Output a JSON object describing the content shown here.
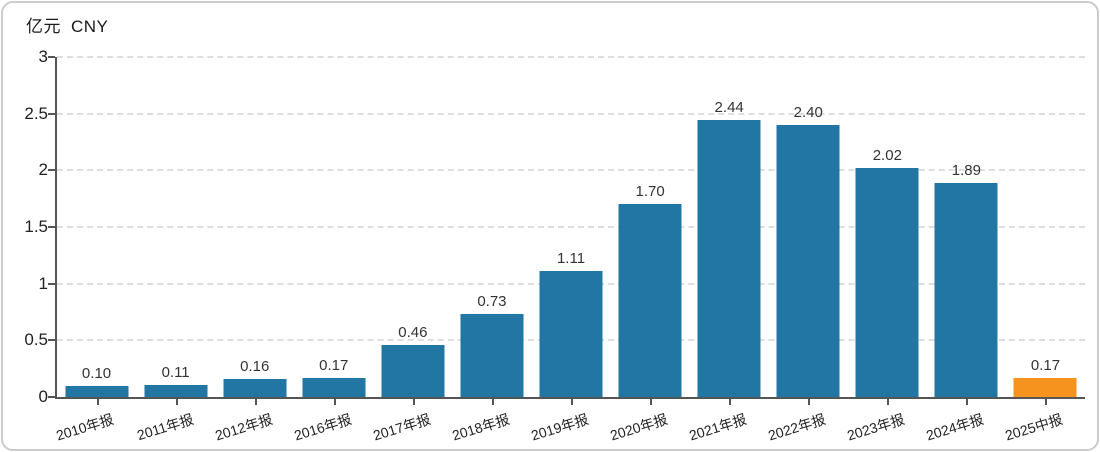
{
  "title": {
    "unit": "亿元",
    "currency": "CNY"
  },
  "chart_data": {
    "type": "bar",
    "title": "亿元 CNY",
    "xlabel": "",
    "ylabel": "亿元 CNY",
    "categories": [
      "2010年报",
      "2011年报",
      "2012年报",
      "2016年报",
      "2017年报",
      "2018年报",
      "2019年报",
      "2020年报",
      "2021年报",
      "2022年报",
      "2023年报",
      "2024年报",
      "2025中报"
    ],
    "values": [
      0.1,
      0.11,
      0.16,
      0.17,
      0.46,
      0.73,
      1.11,
      1.7,
      2.44,
      2.4,
      2.02,
      1.89,
      0.17
    ],
    "value_labels": [
      "0.10",
      "0.11",
      "0.16",
      "0.17",
      "0.46",
      "0.73",
      "1.11",
      "1.70",
      "2.44",
      "2.40",
      "2.02",
      "1.89",
      "0.17"
    ],
    "ylim": [
      0,
      3
    ],
    "yticks": [
      0,
      0.5,
      1,
      1.5,
      2,
      2.5,
      3
    ],
    "ytick_labels": [
      "0",
      "0.5",
      "1",
      "1.5",
      "2",
      "2.5",
      "3"
    ],
    "grid": "horizontal-dashed",
    "legend": "none",
    "bar_color": "#2176a3",
    "highlight_color": "#f6921e",
    "highlight_index": 12,
    "axis_color": "#555555",
    "gridline_color": "#dedede"
  }
}
